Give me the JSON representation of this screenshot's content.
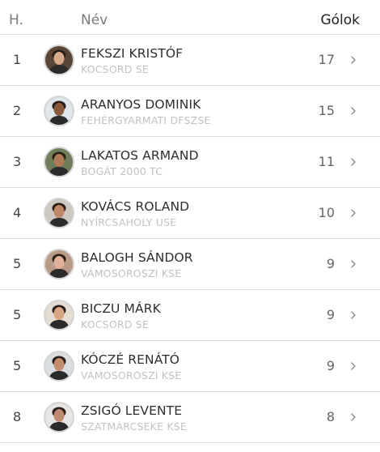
{
  "header": {
    "rank_label": "H.",
    "name_label": "Név",
    "goals_label": "Gólok"
  },
  "rows": [
    {
      "rank": "1",
      "name": "FEKSZI KRISTÓF",
      "club": "KOCSORD SE",
      "goals": "17",
      "avatar_bg": "#5a4636",
      "avatar_skin": "#d8a98a"
    },
    {
      "rank": "2",
      "name": "ARANYOS DOMINIK",
      "club": "FEHÉRGYARMATI DFSZSE",
      "goals": "15",
      "avatar_bg": "#dfe6ec",
      "avatar_skin": "#8a5a3c"
    },
    {
      "rank": "3",
      "name": "LAKATOS ARMAND",
      "club": "BOGÁT 2000 TC",
      "goals": "11",
      "avatar_bg": "#6f7d5b",
      "avatar_skin": "#b07a58"
    },
    {
      "rank": "4",
      "name": "KOVÁCS ROLAND",
      "club": "NYÍRCSAHOLY USE",
      "goals": "10",
      "avatar_bg": "#cfc8c0",
      "avatar_skin": "#c08868"
    },
    {
      "rank": "5",
      "name": "BALOGH SÁNDOR",
      "club": "VÁMOSOROSZI KSE",
      "goals": "9",
      "avatar_bg": "#b89a86",
      "avatar_skin": "#e0b09a"
    },
    {
      "rank": "5",
      "name": "BICZU MÁRK",
      "club": "KOCSORD SE",
      "goals": "9",
      "avatar_bg": "#e6ddd2",
      "avatar_skin": "#d8a685"
    },
    {
      "rank": "5",
      "name": "KÓCZÉ RENÁTÓ",
      "club": "VÁMOSOROSZI KSE",
      "goals": "9",
      "avatar_bg": "#d9dde0",
      "avatar_skin": "#c48c6c"
    },
    {
      "rank": "8",
      "name": "ZSIGÓ LEVENTE",
      "club": "SZATMÁRCSEKE KSE",
      "goals": "8",
      "avatar_bg": "#e8e6e4",
      "avatar_skin": "#bf8a70"
    }
  ]
}
